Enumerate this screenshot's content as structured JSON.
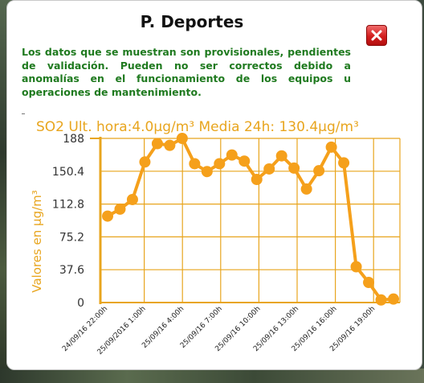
{
  "popup": {
    "title": "P. Deportes",
    "notice": "Los datos que se muestran son provisionales, pendientes de validación. Pueden no ser correctos debido a anomalías en el funcionamiento de los equipos u operaciones de mantenimiento.",
    "chart_heading": "SO2 Ult. hora:4.0µg/m³ Media 24h: 130.4µg/m³",
    "close_icon": "close-icon"
  },
  "colors": {
    "accent": "#f5a01b",
    "axis": "#e8a51e",
    "notice_text": "#1f7a1f",
    "close_button": "#d31e1e"
  },
  "chart_data": {
    "type": "line",
    "title": "SO2 Ult. hora:4.0µg/m³ Media 24h: 130.4µg/m³",
    "xlabel": "",
    "ylabel": "Valores en µg/m³",
    "ylim": [
      0,
      188
    ],
    "yticks": [
      "0",
      "37.6",
      "75.2",
      "112.8",
      "150.4",
      "188"
    ],
    "xticks": [
      "24/09/16 22:00h",
      "25/09/2016 1:00h",
      "25/09/16 4:00h",
      "25/09/16 7:00h",
      "25/09/16 10:00h",
      "25/09/16 13:00h",
      "25/09/16 16:00h",
      "25/09/16 19:00h"
    ],
    "grid": true,
    "series": [
      {
        "values": [
          99,
          107,
          118,
          161,
          182,
          180,
          188,
          159,
          150,
          159,
          169,
          162,
          141,
          153,
          168,
          154,
          130,
          151,
          178,
          160,
          41,
          23,
          3,
          4
        ]
      }
    ]
  }
}
